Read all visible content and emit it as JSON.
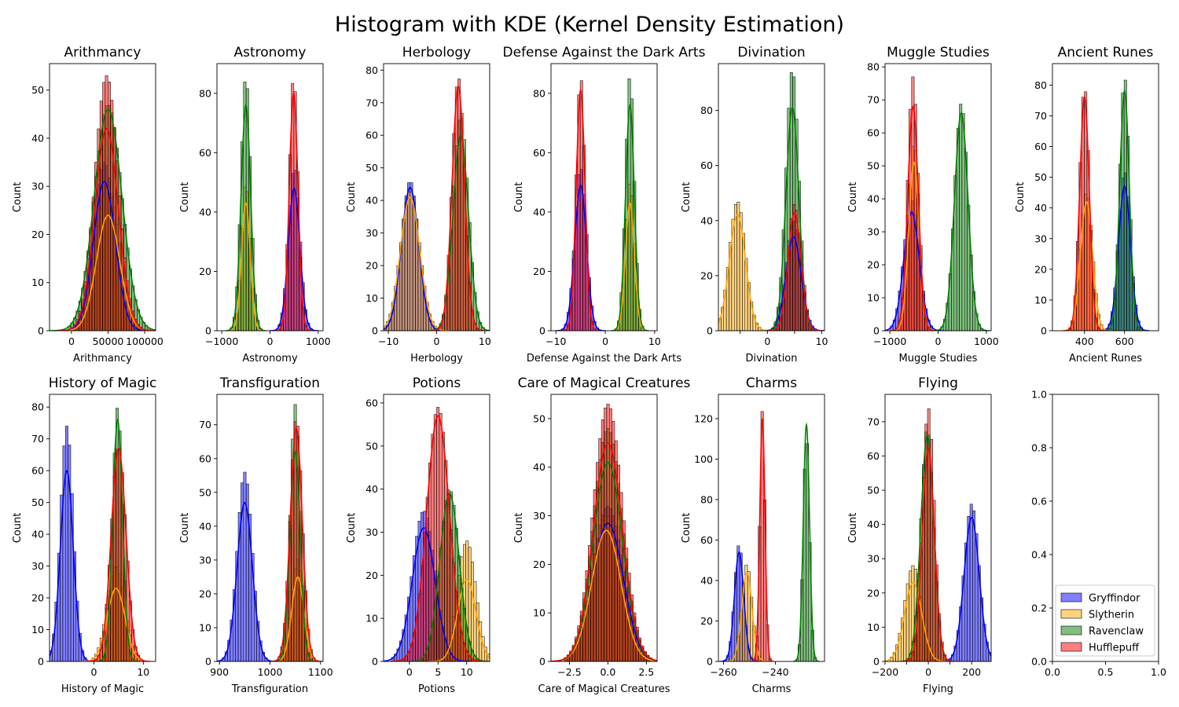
{
  "figure_title": "Histogram with KDE (Kernel Density Estimation)",
  "legend": [
    {
      "name": "Gryffindor",
      "color": "#0000ff"
    },
    {
      "name": "Slytherin",
      "color": "#ffa500"
    },
    {
      "name": "Ravenclaw",
      "color": "#008000"
    },
    {
      "name": "Hufflepuff",
      "color": "#ff0000"
    }
  ],
  "chart_data": [
    {
      "type": "histogram",
      "title": "Arithmancy",
      "xlabel": "Arithmancy",
      "ylabel": "Count",
      "xlim": [
        -30000,
        115000
      ],
      "ylim": [
        0,
        55.5
      ],
      "xticks": [
        0,
        50000,
        100000
      ],
      "xtick_labels": [
        "0",
        "50000",
        "100000"
      ],
      "yticks": [
        0,
        10,
        20,
        30,
        40,
        50
      ],
      "series": [
        {
          "house": "Gryffindor",
          "mean": 45000,
          "sd": 15000,
          "peak": 31,
          "hist_peak": 35
        },
        {
          "house": "Slytherin",
          "mean": 50000,
          "sd": 16000,
          "peak": 24,
          "hist_peak": 30
        },
        {
          "house": "Ravenclaw",
          "mean": 50000,
          "sd": 19000,
          "peak": 46,
          "hist_peak": 47
        },
        {
          "house": "Hufflepuff",
          "mean": 48000,
          "sd": 16000,
          "peak": 42,
          "hist_peak": 53
        }
      ]
    },
    {
      "type": "histogram",
      "title": "Astronomy",
      "xlabel": "Astronomy",
      "ylabel": "Count",
      "xlim": [
        -1100,
        1100
      ],
      "ylim": [
        0,
        90
      ],
      "xticks": [
        -1000,
        0,
        1000
      ],
      "xtick_labels": [
        "−1000",
        "0",
        "1000"
      ],
      "yticks": [
        0,
        20,
        40,
        60,
        80
      ],
      "series": [
        {
          "house": "Gryffindor",
          "mean": 500,
          "sd": 120,
          "peak": 48,
          "hist_peak": 55
        },
        {
          "house": "Slytherin",
          "mean": -500,
          "sd": 90,
          "peak": 43,
          "hist_peak": 50
        },
        {
          "house": "Ravenclaw",
          "mean": -500,
          "sd": 100,
          "peak": 76,
          "hist_peak": 86
        },
        {
          "house": "Hufflepuff",
          "mean": 490,
          "sd": 90,
          "peak": 80,
          "hist_peak": 86
        }
      ]
    },
    {
      "type": "histogram",
      "title": "Herbology",
      "xlabel": "Herbology",
      "ylabel": "Count",
      "xlim": [
        -11,
        11
      ],
      "ylim": [
        0,
        82
      ],
      "xticks": [
        -10,
        0,
        10
      ],
      "xtick_labels": [
        "−10",
        "0",
        "10"
      ],
      "yticks": [
        0,
        10,
        20,
        30,
        40,
        50,
        60,
        70,
        80
      ],
      "series": [
        {
          "house": "Gryffindor",
          "mean": -5.5,
          "sd": 1.8,
          "peak": 44,
          "hist_peak": 46
        },
        {
          "house": "Slytherin",
          "mean": -5.5,
          "sd": 2.0,
          "peak": 41,
          "hist_peak": 43
        },
        {
          "house": "Ravenclaw",
          "mean": 5,
          "sd": 1.6,
          "peak": 60,
          "hist_peak": 66
        },
        {
          "house": "Hufflepuff",
          "mean": 4.5,
          "sd": 1.3,
          "peak": 75,
          "hist_peak": 78
        }
      ]
    },
    {
      "type": "histogram",
      "title": "Defense Against the Dark Arts",
      "xlabel": "Defense Against the Dark Arts",
      "ylabel": "Count",
      "xlim": [
        -11,
        10.5
      ],
      "ylim": [
        0,
        90
      ],
      "xticks": [
        -10,
        0,
        10
      ],
      "xtick_labels": [
        "−10",
        "0",
        "10"
      ],
      "yticks": [
        0,
        20,
        40,
        60,
        80
      ],
      "series": [
        {
          "house": "Gryffindor",
          "mean": -5,
          "sd": 1.2,
          "peak": 49,
          "hist_peak": 55
        },
        {
          "house": "Slytherin",
          "mean": 5,
          "sd": 0.9,
          "peak": 43,
          "hist_peak": 50
        },
        {
          "house": "Ravenclaw",
          "mean": 5,
          "sd": 0.9,
          "peak": 76,
          "hist_peak": 86
        },
        {
          "house": "Hufflepuff",
          "mean": -5,
          "sd": 0.9,
          "peak": 81,
          "hist_peak": 86
        }
      ]
    },
    {
      "type": "histogram",
      "title": "Divination",
      "xlabel": "Divination",
      "ylabel": "Count",
      "xlim": [
        -9,
        10.5
      ],
      "ylim": [
        0,
        97
      ],
      "xticks": [
        -5,
        0,
        5,
        10
      ],
      "xtick_labels": [
        "",
        "0",
        "",
        "10"
      ],
      "yticks": [
        0,
        20,
        40,
        60,
        80
      ],
      "series": [
        {
          "house": "Gryffindor",
          "mean": 4.8,
          "sd": 1.4,
          "peak": 34,
          "hist_peak": 40
        },
        {
          "house": "Slytherin",
          "mean": -5.5,
          "sd": 1.5,
          "peak": 42,
          "hist_peak": 47
        },
        {
          "house": "Ravenclaw",
          "mean": 4.6,
          "sd": 1.2,
          "peak": 81,
          "hist_peak": 95
        },
        {
          "house": "Hufflepuff",
          "mean": 5.0,
          "sd": 1.2,
          "peak": 43,
          "hist_peak": 46
        }
      ]
    },
    {
      "type": "histogram",
      "title": "Muggle Studies",
      "xlabel": "Muggle Studies",
      "ylabel": "Count",
      "xlim": [
        -1100,
        1100
      ],
      "ylim": [
        0,
        81
      ],
      "xticks": [
        -1000,
        0,
        1000
      ],
      "xtick_labels": [
        "−1000",
        "0",
        "1000"
      ],
      "yticks": [
        0,
        10,
        20,
        30,
        40,
        50,
        60,
        70,
        80
      ],
      "series": [
        {
          "house": "Gryffindor",
          "mean": -550,
          "sd": 160,
          "peak": 36,
          "hist_peak": 40
        },
        {
          "house": "Slytherin",
          "mean": -500,
          "sd": 110,
          "peak": 51,
          "hist_peak": 57
        },
        {
          "house": "Ravenclaw",
          "mean": 480,
          "sd": 140,
          "peak": 66,
          "hist_peak": 69
        },
        {
          "house": "Hufflepuff",
          "mean": -520,
          "sd": 110,
          "peak": 68,
          "hist_peak": 77
        }
      ]
    },
    {
      "type": "histogram",
      "title": "Ancient Runes",
      "xlabel": "Ancient Runes",
      "ylabel": "Count",
      "xlim": [
        240,
        770
      ],
      "ylim": [
        0,
        87
      ],
      "xticks": [
        400,
        600
      ],
      "xtick_labels": [
        "400",
        "600"
      ],
      "yticks": [
        0,
        10,
        20,
        30,
        40,
        50,
        60,
        70,
        80
      ],
      "series": [
        {
          "house": "Gryffindor",
          "mean": 600,
          "sd": 30,
          "peak": 47,
          "hist_peak": 52
        },
        {
          "house": "Slytherin",
          "mean": 410,
          "sd": 30,
          "peak": 42,
          "hist_peak": 45
        },
        {
          "house": "Ravenclaw",
          "mean": 600,
          "sd": 24,
          "peak": 78,
          "hist_peak": 83
        },
        {
          "house": "Hufflepuff",
          "mean": 400,
          "sd": 24,
          "peak": 76,
          "hist_peak": 80
        }
      ]
    },
    {
      "type": "histogram",
      "title": "History of Magic",
      "xlabel": "History of Magic",
      "ylabel": "Count",
      "xlim": [
        -9,
        12.5
      ],
      "ylim": [
        0,
        84
      ],
      "xticks": [
        0,
        10
      ],
      "xtick_labels": [
        "0",
        "10"
      ],
      "yticks": [
        0,
        10,
        20,
        30,
        40,
        50,
        60,
        70,
        80
      ],
      "series": [
        {
          "house": "Gryffindor",
          "mean": -5.5,
          "sd": 1.3,
          "peak": 60,
          "hist_peak": 74
        },
        {
          "house": "Slytherin",
          "mean": 4.5,
          "sd": 1.8,
          "peak": 23,
          "hist_peak": 30
        },
        {
          "house": "Ravenclaw",
          "mean": 4.8,
          "sd": 1.0,
          "peak": 76,
          "hist_peak": 80
        },
        {
          "house": "Hufflepuff",
          "mean": 5.0,
          "sd": 1.5,
          "peak": 67,
          "hist_peak": 68
        }
      ]
    },
    {
      "type": "histogram",
      "title": "Transfiguration",
      "xlabel": "Transfiguration",
      "ylabel": "Count",
      "xlim": [
        895,
        1105
      ],
      "ylim": [
        0,
        79
      ],
      "xticks": [
        900,
        1000,
        1100
      ],
      "xtick_labels": [
        "900",
        "1000",
        "1100"
      ],
      "yticks": [
        0,
        10,
        20,
        30,
        40,
        50,
        60,
        70
      ],
      "series": [
        {
          "house": "Gryffindor",
          "mean": 950,
          "sd": 15,
          "peak": 47,
          "hist_peak": 56
        },
        {
          "house": "Slytherin",
          "mean": 1055,
          "sd": 12,
          "peak": 25,
          "hist_peak": 30
        },
        {
          "house": "Ravenclaw",
          "mean": 1050,
          "sd": 10,
          "peak": 62,
          "hist_peak": 76
        },
        {
          "house": "Hufflepuff",
          "mean": 1052,
          "sd": 12,
          "peak": 69,
          "hist_peak": 72
        }
      ]
    },
    {
      "type": "histogram",
      "title": "Potions",
      "xlabel": "Potions",
      "ylabel": "Count",
      "xlim": [
        -4.5,
        14
      ],
      "ylim": [
        0,
        62
      ],
      "xticks": [
        0,
        5,
        10
      ],
      "xtick_labels": [
        "0",
        "5",
        "10"
      ],
      "yticks": [
        0,
        10,
        20,
        30,
        40,
        50,
        60
      ],
      "series": [
        {
          "house": "Gryffindor",
          "mean": 2.5,
          "sd": 2.0,
          "peak": 31,
          "hist_peak": 35
        },
        {
          "house": "Slytherin",
          "mean": 10.0,
          "sd": 1.6,
          "peak": 19,
          "hist_peak": 28
        },
        {
          "house": "Ravenclaw",
          "mean": 7.0,
          "sd": 1.7,
          "peak": 39,
          "hist_peak": 40
        },
        {
          "house": "Hufflepuff",
          "mean": 5.0,
          "sd": 2.0,
          "peak": 57,
          "hist_peak": 59
        }
      ]
    },
    {
      "type": "histogram",
      "title": "Care of Magical Creatures",
      "xlabel": "Care of Magical Creatures",
      "ylabel": "Count",
      "xlim": [
        -3.7,
        3.2
      ],
      "ylim": [
        0,
        55
      ],
      "xticks": [
        -2.5,
        0,
        2.5
      ],
      "xtick_labels": [
        "−2.5",
        "0.0",
        "2.5"
      ],
      "yticks": [
        0,
        10,
        20,
        30,
        40,
        50
      ],
      "series": [
        {
          "house": "Gryffindor",
          "mean": 0.0,
          "sd": 1.0,
          "peak": 28.5,
          "hist_peak": 32
        },
        {
          "house": "Slytherin",
          "mean": -0.1,
          "sd": 0.95,
          "peak": 27,
          "hist_peak": 30
        },
        {
          "house": "Ravenclaw",
          "mean": 0.0,
          "sd": 0.95,
          "peak": 41,
          "hist_peak": 48
        },
        {
          "house": "Hufflepuff",
          "mean": 0.0,
          "sd": 0.95,
          "peak": 45,
          "hist_peak": 53
        }
      ]
    },
    {
      "type": "histogram",
      "title": "Charms",
      "xlabel": "Charms",
      "ylabel": "Count",
      "xlim": [
        -262,
        -221
      ],
      "ylim": [
        0,
        132
      ],
      "xticks": [
        -260,
        -240
      ],
      "xtick_labels": [
        "−260",
        "−240"
      ],
      "yticks": [
        0,
        20,
        40,
        60,
        80,
        100,
        120
      ],
      "series": [
        {
          "house": "Gryffindor",
          "mean": -254,
          "sd": 1.8,
          "peak": 54,
          "hist_peak": 58
        },
        {
          "house": "Slytherin",
          "mean": -251,
          "sd": 2.0,
          "peak": 44,
          "hist_peak": 48
        },
        {
          "house": "Ravenclaw",
          "mean": -228,
          "sd": 1.2,
          "peak": 117,
          "hist_peak": 112
        },
        {
          "house": "Hufflepuff",
          "mean": -245,
          "sd": 1.0,
          "peak": 120,
          "hist_peak": 124
        }
      ]
    },
    {
      "type": "histogram",
      "title": "Flying",
      "xlabel": "Flying",
      "ylabel": "Count",
      "xlim": [
        -200,
        290
      ],
      "ylim": [
        0,
        78
      ],
      "xticks": [
        -200,
        -100,
        0,
        100,
        200
      ],
      "xtick_labels": [
        "−200",
        "",
        "0",
        "",
        "200"
      ],
      "yticks": [
        0,
        10,
        20,
        30,
        40,
        50,
        60,
        70
      ],
      "series": [
        {
          "house": "Gryffindor",
          "mean": 200,
          "sd": 35,
          "peak": 42,
          "hist_peak": 46
        },
        {
          "house": "Slytherin",
          "mean": -70,
          "sd": 40,
          "peak": 23,
          "hist_peak": 28
        },
        {
          "house": "Ravenclaw",
          "mean": -5,
          "sd": 30,
          "peak": 66,
          "hist_peak": 68
        },
        {
          "house": "Hufflepuff",
          "mean": 0,
          "sd": 28,
          "peak": 62,
          "hist_peak": 74
        }
      ]
    },
    {
      "type": "empty",
      "title": "",
      "xlabel": "",
      "ylabel": "",
      "xlim": [
        0,
        1
      ],
      "ylim": [
        0,
        1
      ],
      "xticks": [
        0,
        0.5,
        1
      ],
      "xtick_labels": [
        "0.0",
        "0.5",
        "1.0"
      ],
      "yticks": [
        0,
        0.2,
        0.4,
        0.6,
        0.8,
        1.0
      ],
      "ytick_labels": [
        "0.0",
        "0.2",
        "0.4",
        "0.6",
        "0.8",
        "1.0"
      ],
      "series": []
    }
  ]
}
